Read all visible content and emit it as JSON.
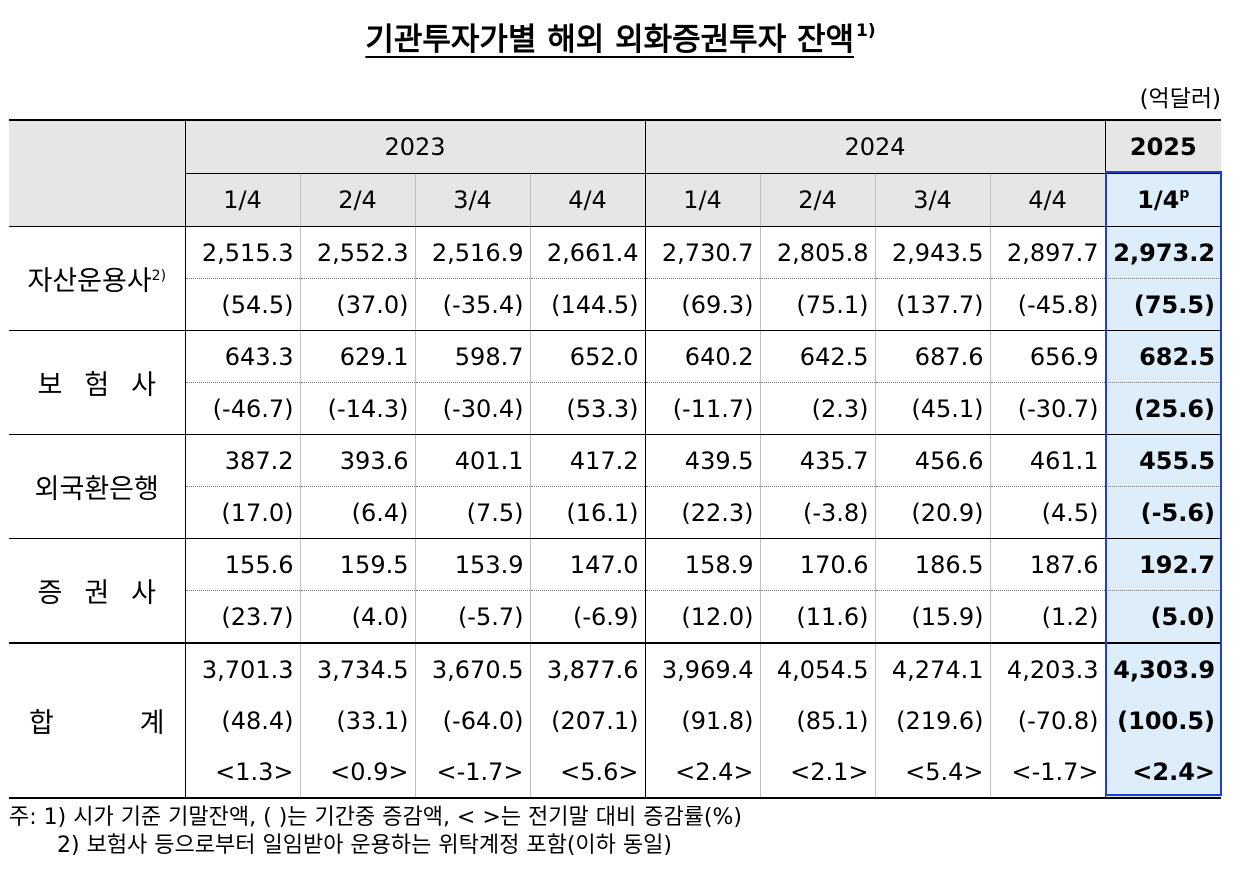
{
  "title": "기관투자가별 해외 외화증권투자 잔액",
  "title_sup": "1)",
  "unit": "(억달러)",
  "years": [
    "2023",
    "2024",
    "2025"
  ],
  "quarters": [
    "1/4",
    "2/4",
    "3/4",
    "4/4",
    "1/4",
    "2/4",
    "3/4",
    "4/4",
    "1/4"
  ],
  "quarter_last_sup": "p",
  "rows": [
    {
      "label": "자산운용사",
      "label_sup": "2)",
      "balance": [
        "2,515.3",
        "2,552.3",
        "2,516.9",
        "2,661.4",
        "2,730.7",
        "2,805.8",
        "2,943.5",
        "2,897.7",
        "2,973.2"
      ],
      "change": [
        "(54.5)",
        "(37.0)",
        "(-35.4)",
        "(144.5)",
        "(69.3)",
        "(75.1)",
        "(137.7)",
        "(-45.8)",
        "(75.5)"
      ]
    },
    {
      "label": "보험사",
      "label_sup": "",
      "balance": [
        "643.3",
        "629.1",
        "598.7",
        "652.0",
        "640.2",
        "642.5",
        "687.6",
        "656.9",
        "682.5"
      ],
      "change": [
        "(-46.7)",
        "(-14.3)",
        "(-30.4)",
        "(53.3)",
        "(-11.7)",
        "(2.3)",
        "(45.1)",
        "(-30.7)",
        "(25.6)"
      ]
    },
    {
      "label": "외국환은행",
      "label_sup": "",
      "balance": [
        "387.2",
        "393.6",
        "401.1",
        "417.2",
        "439.5",
        "435.7",
        "456.6",
        "461.1",
        "455.5"
      ],
      "change": [
        "(17.0)",
        "(6.4)",
        "(7.5)",
        "(16.1)",
        "(22.3)",
        "(-3.8)",
        "(20.9)",
        "(4.5)",
        "(-5.6)"
      ]
    },
    {
      "label": "증권사",
      "label_sup": "",
      "balance": [
        "155.6",
        "159.5",
        "153.9",
        "147.0",
        "158.9",
        "170.6",
        "186.5",
        "187.6",
        "192.7"
      ],
      "change": [
        "(23.7)",
        "(4.0)",
        "(-5.7)",
        "(-6.9)",
        "(12.0)",
        "(11.6)",
        "(15.9)",
        "(1.2)",
        "(5.0)"
      ]
    }
  ],
  "total": {
    "label_left": "합",
    "label_right": "계",
    "balance": [
      "3,701.3",
      "3,734.5",
      "3,670.5",
      "3,877.6",
      "3,969.4",
      "4,054.5",
      "4,274.1",
      "4,203.3",
      "4,303.9"
    ],
    "change": [
      "(48.4)",
      "(33.1)",
      "(-64.0)",
      "(207.1)",
      "(91.8)",
      "(85.1)",
      "(219.6)",
      "(-70.8)",
      "(100.5)"
    ],
    "rate": [
      "<1.3>",
      "<0.9>",
      "<-1.7>",
      "<5.6>",
      "<2.4>",
      "<2.1>",
      "<5.4>",
      "<-1.7>",
      "<2.4>"
    ]
  },
  "notes": [
    "주: 1)  시가 기준 기말잔액, (    )는 기간중 증감액, <    >는 전기말 대비 증감률(%)",
    "2)  보험사 등으로부터 일임받아 운용하는 위탁계정 포함(이하 동일)"
  ],
  "colors": {
    "header_bg": "#e6e6e6",
    "highlight_bg": "#ddeefa",
    "highlight_border": "#1f3fd0"
  }
}
